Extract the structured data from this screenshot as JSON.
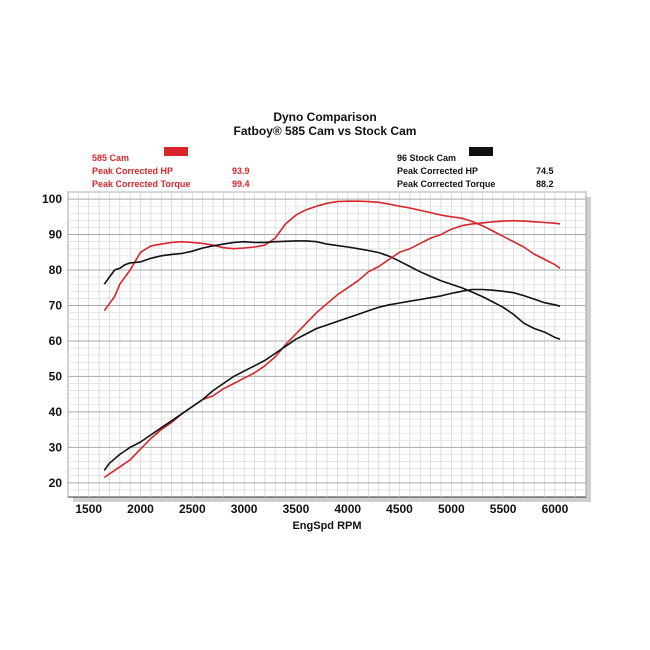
{
  "chart_data": {
    "type": "line",
    "title": "Dyno Comparison",
    "subtitle": "Fatboy® 585 Cam vs Stock Cam",
    "xlabel": "EngSpd RPM",
    "ylabel": "",
    "xlim": [
      1300,
      6300
    ],
    "ylim": [
      16,
      102
    ],
    "x_ticks": [
      1500,
      2000,
      2500,
      3000,
      3500,
      4000,
      4500,
      5000,
      5500,
      6000
    ],
    "y_ticks": [
      20,
      30,
      40,
      50,
      60,
      70,
      80,
      90,
      100
    ],
    "grid": true,
    "legend": {
      "left": {
        "name": "585 Cam",
        "color": "#d6262b",
        "hp_label": "Peak Corrected HP",
        "hp_value": "93.9",
        "torque_label": "Peak Corrected Torque",
        "torque_value": "99.4"
      },
      "right": {
        "name": "96 Stock Cam",
        "color": "#111111",
        "hp_label": "Peak Corrected HP",
        "hp_value": "74.5",
        "torque_label": "Peak Corrected Torque",
        "torque_value": "88.2"
      }
    },
    "series": [
      {
        "name": "585 Cam",
        "measure": "Torque",
        "color": "#d6262b",
        "points": [
          [
            1650,
            68.5
          ],
          [
            1700,
            70.5
          ],
          [
            1750,
            72.5
          ],
          [
            1800,
            76
          ],
          [
            1850,
            78
          ],
          [
            1900,
            80
          ],
          [
            1950,
            82.5
          ],
          [
            2000,
            85
          ],
          [
            2100,
            86.8
          ],
          [
            2200,
            87.3
          ],
          [
            2300,
            87.8
          ],
          [
            2400,
            88
          ],
          [
            2500,
            87.8
          ],
          [
            2600,
            87.5
          ],
          [
            2700,
            87
          ],
          [
            2800,
            86.3
          ],
          [
            2900,
            86
          ],
          [
            3000,
            86.2
          ],
          [
            3100,
            86.5
          ],
          [
            3200,
            87
          ],
          [
            3300,
            89
          ],
          [
            3350,
            91
          ],
          [
            3400,
            93
          ],
          [
            3500,
            95.5
          ],
          [
            3600,
            97
          ],
          [
            3700,
            98
          ],
          [
            3800,
            98.8
          ],
          [
            3900,
            99.3
          ],
          [
            4000,
            99.4
          ],
          [
            4100,
            99.4
          ],
          [
            4200,
            99.3
          ],
          [
            4300,
            99.1
          ],
          [
            4400,
            98.6
          ],
          [
            4500,
            98
          ],
          [
            4600,
            97.5
          ],
          [
            4700,
            96.8
          ],
          [
            4800,
            96.2
          ],
          [
            4900,
            95.5
          ],
          [
            5000,
            95
          ],
          [
            5100,
            94.6
          ],
          [
            5200,
            93.7
          ],
          [
            5300,
            92.5
          ],
          [
            5400,
            91
          ],
          [
            5500,
            89.5
          ],
          [
            5600,
            88
          ],
          [
            5700,
            86.5
          ],
          [
            5800,
            84.5
          ],
          [
            5900,
            83
          ],
          [
            6000,
            81.5
          ],
          [
            6050,
            80.5
          ]
        ]
      },
      {
        "name": "96 Stock Cam",
        "measure": "Torque",
        "color": "#111111",
        "points": [
          [
            1650,
            76
          ],
          [
            1700,
            78
          ],
          [
            1750,
            80
          ],
          [
            1800,
            80.5
          ],
          [
            1850,
            81.5
          ],
          [
            1900,
            82
          ],
          [
            2000,
            82.3
          ],
          [
            2100,
            83.3
          ],
          [
            2200,
            84
          ],
          [
            2300,
            84.4
          ],
          [
            2400,
            84.7
          ],
          [
            2500,
            85.3
          ],
          [
            2600,
            86.2
          ],
          [
            2700,
            86.8
          ],
          [
            2800,
            87.3
          ],
          [
            2900,
            87.8
          ],
          [
            3000,
            88
          ],
          [
            3100,
            87.8
          ],
          [
            3200,
            87.8
          ],
          [
            3300,
            88
          ],
          [
            3400,
            88.1
          ],
          [
            3500,
            88.2
          ],
          [
            3600,
            88.2
          ],
          [
            3700,
            88
          ],
          [
            3800,
            87.3
          ],
          [
            3900,
            86.9
          ],
          [
            4000,
            86.5
          ],
          [
            4100,
            86
          ],
          [
            4200,
            85.5
          ],
          [
            4300,
            84.9
          ],
          [
            4400,
            83.9
          ],
          [
            4500,
            82.5
          ],
          [
            4600,
            81
          ],
          [
            4700,
            79.5
          ],
          [
            4800,
            78.2
          ],
          [
            4900,
            77
          ],
          [
            5000,
            76
          ],
          [
            5100,
            75
          ],
          [
            5200,
            73.8
          ],
          [
            5300,
            72.5
          ],
          [
            5400,
            71
          ],
          [
            5500,
            69.5
          ],
          [
            5600,
            67.5
          ],
          [
            5700,
            65
          ],
          [
            5800,
            63.5
          ],
          [
            5900,
            62.5
          ],
          [
            6000,
            61
          ],
          [
            6050,
            60.5
          ]
        ]
      },
      {
        "name": "585 Cam",
        "measure": "HP",
        "color": "#d6262b",
        "points": [
          [
            1650,
            21.5
          ],
          [
            1700,
            22.5
          ],
          [
            1800,
            24.5
          ],
          [
            1900,
            26.5
          ],
          [
            2000,
            29.5
          ],
          [
            2100,
            32.5
          ],
          [
            2200,
            35
          ],
          [
            2300,
            37
          ],
          [
            2400,
            39.5
          ],
          [
            2500,
            41.5
          ],
          [
            2600,
            43.5
          ],
          [
            2700,
            44.5
          ],
          [
            2800,
            46.5
          ],
          [
            2900,
            48
          ],
          [
            3000,
            49.5
          ],
          [
            3100,
            51
          ],
          [
            3200,
            53
          ],
          [
            3300,
            55.5
          ],
          [
            3400,
            59
          ],
          [
            3500,
            62
          ],
          [
            3600,
            65
          ],
          [
            3700,
            68
          ],
          [
            3800,
            70.5
          ],
          [
            3900,
            73
          ],
          [
            4000,
            75
          ],
          [
            4100,
            77
          ],
          [
            4200,
            79.5
          ],
          [
            4300,
            81
          ],
          [
            4400,
            83
          ],
          [
            4500,
            85
          ],
          [
            4600,
            86
          ],
          [
            4700,
            87.5
          ],
          [
            4800,
            89
          ],
          [
            4900,
            90
          ],
          [
            5000,
            91.5
          ],
          [
            5100,
            92.5
          ],
          [
            5200,
            93
          ],
          [
            5300,
            93.3
          ],
          [
            5400,
            93.6
          ],
          [
            5500,
            93.8
          ],
          [
            5600,
            93.9
          ],
          [
            5700,
            93.8
          ],
          [
            5800,
            93.6
          ],
          [
            5900,
            93.4
          ],
          [
            6000,
            93.2
          ],
          [
            6050,
            93
          ]
        ]
      },
      {
        "name": "96 Stock Cam",
        "measure": "HP",
        "color": "#111111",
        "points": [
          [
            1650,
            23.5
          ],
          [
            1700,
            25.5
          ],
          [
            1800,
            28
          ],
          [
            1900,
            30
          ],
          [
            2000,
            31.5
          ],
          [
            2100,
            33.5
          ],
          [
            2200,
            35.5
          ],
          [
            2300,
            37.5
          ],
          [
            2400,
            39.5
          ],
          [
            2500,
            41.5
          ],
          [
            2600,
            43.5
          ],
          [
            2700,
            46
          ],
          [
            2800,
            48
          ],
          [
            2900,
            50
          ],
          [
            3000,
            51.5
          ],
          [
            3100,
            53
          ],
          [
            3200,
            54.5
          ],
          [
            3300,
            56.5
          ],
          [
            3400,
            58.5
          ],
          [
            3500,
            60.5
          ],
          [
            3600,
            62
          ],
          [
            3700,
            63.5
          ],
          [
            3800,
            64.5
          ],
          [
            3900,
            65.5
          ],
          [
            4000,
            66.5
          ],
          [
            4100,
            67.5
          ],
          [
            4200,
            68.5
          ],
          [
            4300,
            69.5
          ],
          [
            4400,
            70.2
          ],
          [
            4500,
            70.7
          ],
          [
            4600,
            71.2
          ],
          [
            4700,
            71.7
          ],
          [
            4800,
            72.2
          ],
          [
            4900,
            72.7
          ],
          [
            5000,
            73.4
          ],
          [
            5100,
            74
          ],
          [
            5200,
            74.5
          ],
          [
            5300,
            74.5
          ],
          [
            5400,
            74.3
          ],
          [
            5500,
            74
          ],
          [
            5600,
            73.6
          ],
          [
            5700,
            72.8
          ],
          [
            5800,
            71.8
          ],
          [
            5900,
            70.8
          ],
          [
            6000,
            70.2
          ],
          [
            6050,
            69.8
          ]
        ]
      }
    ]
  }
}
